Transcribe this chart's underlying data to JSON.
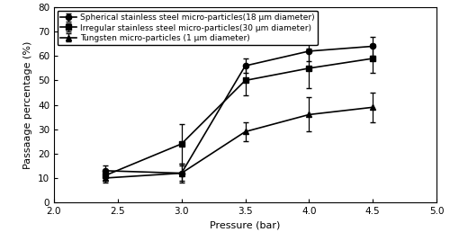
{
  "x": [
    2.4,
    3.0,
    3.5,
    4.0,
    4.5
  ],
  "series": [
    {
      "label": "Spherical stainless steel micro-particles(18 μm diameter)",
      "marker": "o",
      "y": [
        13,
        12,
        56,
        62,
        64
      ],
      "yerr": [
        2,
        3,
        3,
        4,
        4
      ]
    },
    {
      "label": "Irregular stainless steel micro-particles(30 μm diameter)",
      "marker": "s",
      "y": [
        11,
        24,
        50,
        55,
        59
      ],
      "yerr": [
        2,
        8,
        6,
        8,
        6
      ]
    },
    {
      "label": "Tungsten micro-particles (1 μm diameter)",
      "marker": "^",
      "y": [
        10,
        12,
        29,
        36,
        39
      ],
      "yerr": [
        2,
        4,
        4,
        7,
        6
      ]
    }
  ],
  "xlim": [
    2.0,
    5.0
  ],
  "ylim": [
    0,
    80
  ],
  "yticks": [
    0,
    10,
    20,
    30,
    40,
    50,
    60,
    70,
    80
  ],
  "xticks": [
    2.0,
    2.5,
    3.0,
    3.5,
    4.0,
    4.5,
    5.0
  ],
  "xlabel": "Pressure (bar)",
  "ylabel": "Passaage percentage (%)",
  "line_color": "black",
  "legend_fontsize": 6.5,
  "axis_fontsize": 8,
  "tick_fontsize": 7.5
}
